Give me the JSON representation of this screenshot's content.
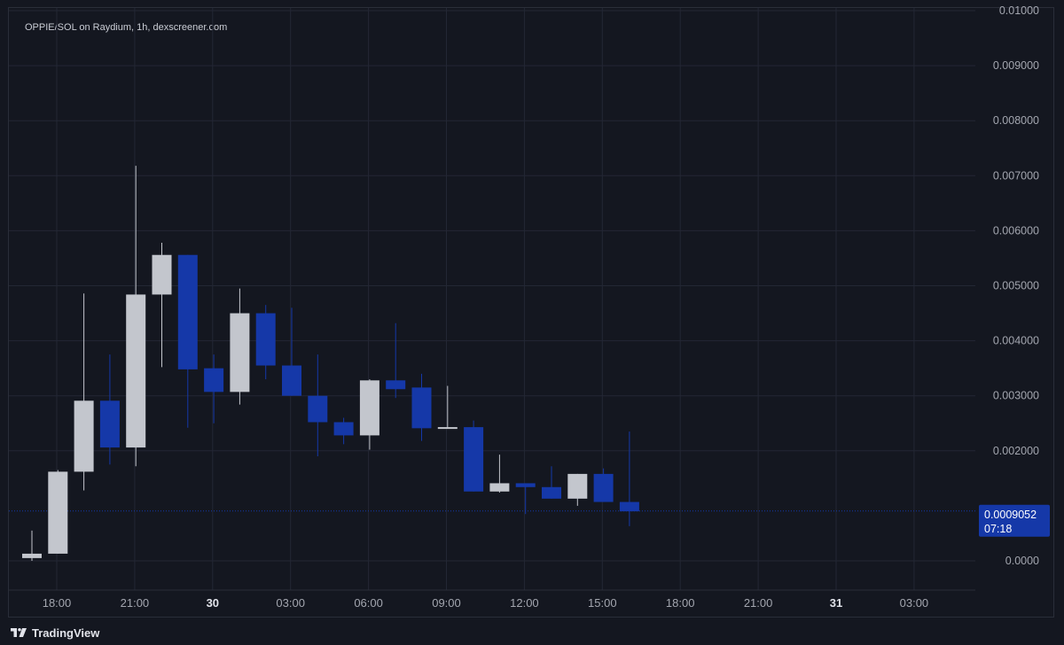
{
  "window": {
    "title": "OPPIE/SOL on Raydium, 1h, dexscreener.com"
  },
  "brand": {
    "name": "TradingView",
    "icon": "tradingview-logo-icon"
  },
  "colors": {
    "background": "#141720",
    "grid": "#232734",
    "up_candle": "#c3c6cd",
    "down_candle": "#1538a8",
    "axis_text": "#a3a6af",
    "price_label_bg": "#1538a8",
    "price_label_text": "#ffffff"
  },
  "chart_data": {
    "type": "candlestick",
    "title": "OPPIE/SOL on Raydium, 1h, dexscreener.com",
    "xlabel": "",
    "ylabel": "",
    "ylim": [
      0,
      0.01
    ],
    "grid": true,
    "y_ticks": [
      "0.01000",
      "0.009000",
      "0.008000",
      "0.007000",
      "0.006000",
      "0.005000",
      "0.004000",
      "0.003000",
      "0.002000",
      "0.0000"
    ],
    "y_tick_values": [
      0.01,
      0.009,
      0.008,
      0.007,
      0.006,
      0.005,
      0.004,
      0.003,
      0.002,
      0
    ],
    "x_ticks": [
      {
        "label": "18:00",
        "hour": 0,
        "bold": false
      },
      {
        "label": "21:00",
        "hour": 3,
        "bold": false
      },
      {
        "label": "30",
        "hour": 6,
        "bold": true
      },
      {
        "label": "03:00",
        "hour": 9,
        "bold": false
      },
      {
        "label": "06:00",
        "hour": 12,
        "bold": false
      },
      {
        "label": "09:00",
        "hour": 15,
        "bold": false
      },
      {
        "label": "12:00",
        "hour": 18,
        "bold": false
      },
      {
        "label": "15:00",
        "hour": 21,
        "bold": false
      },
      {
        "label": "18:00",
        "hour": 24,
        "bold": false
      },
      {
        "label": "21:00",
        "hour": 27,
        "bold": false
      },
      {
        "label": "31",
        "hour": 30,
        "bold": true
      },
      {
        "label": "03:00",
        "hour": 33,
        "bold": false
      }
    ],
    "candles": [
      {
        "t": "17:00",
        "open": 5e-05,
        "high": 0.00055,
        "low": 0.0,
        "close": 0.00013
      },
      {
        "t": "18:00",
        "open": 0.00013,
        "high": 0.00165,
        "low": 0.00013,
        "close": 0.00162
      },
      {
        "t": "19:00",
        "open": 0.00162,
        "high": 0.00486,
        "low": 0.00128,
        "close": 0.00291
      },
      {
        "t": "20:00",
        "open": 0.00291,
        "high": 0.00375,
        "low": 0.00175,
        "close": 0.00206
      },
      {
        "t": "21:00",
        "open": 0.00206,
        "high": 0.00718,
        "low": 0.00172,
        "close": 0.00484
      },
      {
        "t": "22:00",
        "open": 0.00484,
        "high": 0.00578,
        "low": 0.00352,
        "close": 0.00556
      },
      {
        "t": "23:00",
        "open": 0.00556,
        "high": 0.00556,
        "low": 0.00242,
        "close": 0.00348
      },
      {
        "t": "00:00",
        "open": 0.0035,
        "high": 0.00375,
        "low": 0.0025,
        "close": 0.00307
      },
      {
        "t": "01:00",
        "open": 0.00307,
        "high": 0.00495,
        "low": 0.00284,
        "close": 0.0045
      },
      {
        "t": "02:00",
        "open": 0.0045,
        "high": 0.00465,
        "low": 0.0033,
        "close": 0.00355
      },
      {
        "t": "03:00",
        "open": 0.00355,
        "high": 0.0046,
        "low": 0.003,
        "close": 0.003
      },
      {
        "t": "04:00",
        "open": 0.003,
        "high": 0.00375,
        "low": 0.0019,
        "close": 0.00252
      },
      {
        "t": "05:00",
        "open": 0.00252,
        "high": 0.0026,
        "low": 0.00212,
        "close": 0.00228
      },
      {
        "t": "06:00",
        "open": 0.00228,
        "high": 0.0033,
        "low": 0.00202,
        "close": 0.00328
      },
      {
        "t": "07:00",
        "open": 0.00328,
        "high": 0.00432,
        "low": 0.00296,
        "close": 0.00312
      },
      {
        "t": "08:00",
        "open": 0.00315,
        "high": 0.0034,
        "low": 0.00218,
        "close": 0.00241
      },
      {
        "t": "09:00",
        "open": 0.00241,
        "high": 0.00318,
        "low": 0.00241,
        "close": 0.00243
      },
      {
        "t": "10:00",
        "open": 0.00243,
        "high": 0.00255,
        "low": 0.00126,
        "close": 0.00126
      },
      {
        "t": "11:00",
        "open": 0.00126,
        "high": 0.00193,
        "low": 0.00124,
        "close": 0.00141
      },
      {
        "t": "12:00",
        "open": 0.00141,
        "high": 0.00141,
        "low": 0.00085,
        "close": 0.00134
      },
      {
        "t": "13:00",
        "open": 0.00134,
        "high": 0.00172,
        "low": 0.00113,
        "close": 0.00113
      },
      {
        "t": "14:00",
        "open": 0.00113,
        "high": 0.00158,
        "low": 0.001,
        "close": 0.00158
      },
      {
        "t": "15:00",
        "open": 0.00158,
        "high": 0.00168,
        "low": 0.00107,
        "close": 0.00107
      },
      {
        "t": "16:00",
        "open": 0.00107,
        "high": 0.00235,
        "low": 0.00063,
        "close": 0.0009
      }
    ],
    "current_price": {
      "value": 0.0009052,
      "label": "0.0009052",
      "countdown": "07:18"
    }
  }
}
